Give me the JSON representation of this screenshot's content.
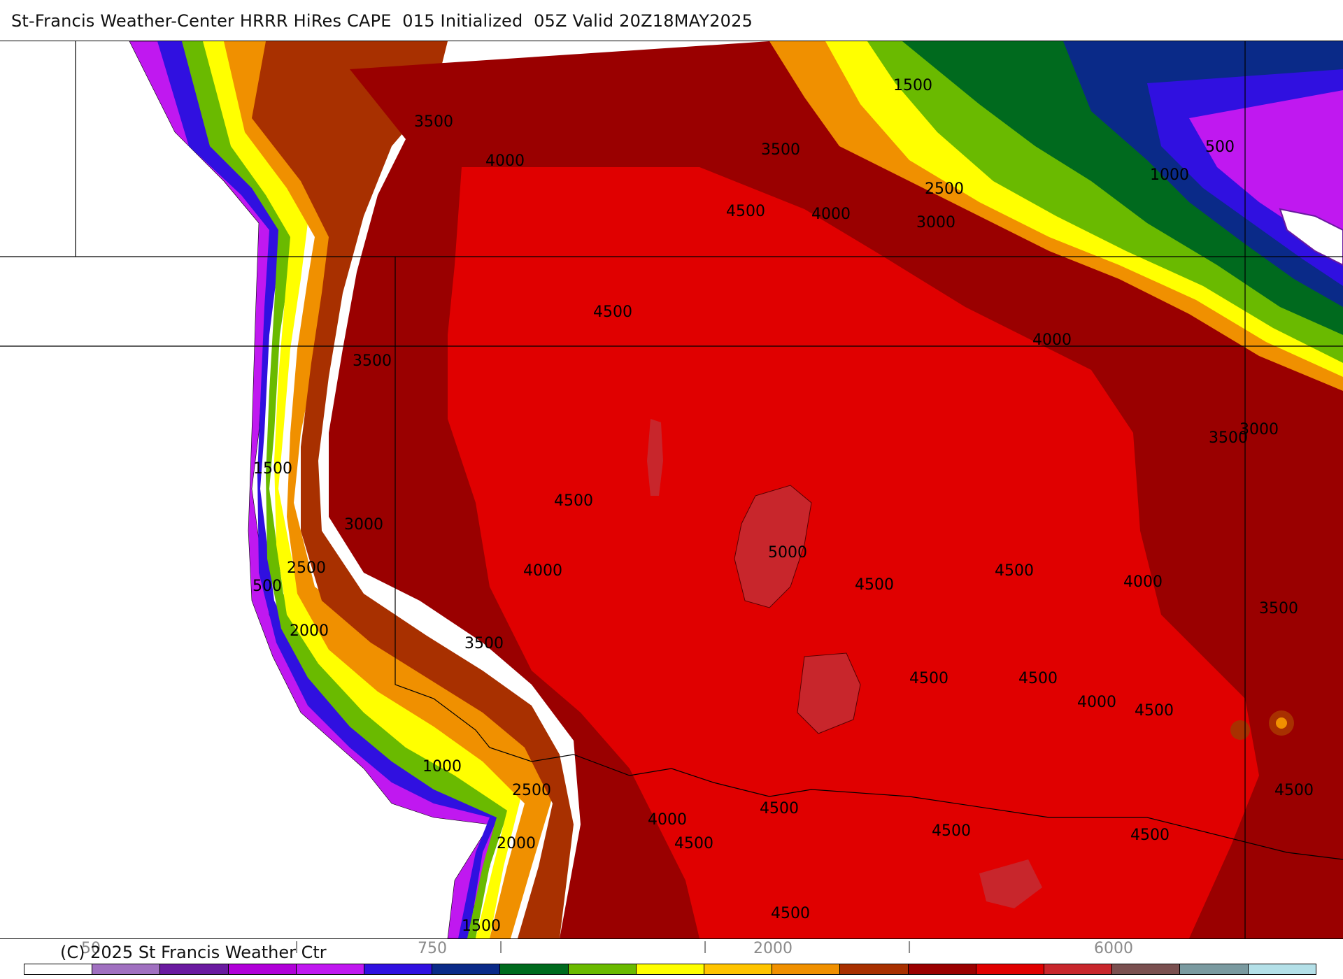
{
  "header": {
    "title": "St-Francis Weather-Center HRRR HiRes CAPE  015 Initialized  05Z Valid 20Z18MAY2025"
  },
  "footer": {
    "copyright": "(C) 2025 St Francis Weather Ctr"
  },
  "colorbar": {
    "tick_labels": [
      "50",
      "l",
      "750",
      "l",
      "l",
      "2000",
      "l",
      "6000"
    ],
    "colors": [
      "#ffffff",
      "#a070c0",
      "#6a1aa0",
      "#b000d8",
      "#c018f0",
      "#3010e0",
      "#0a2a88",
      "#006a1e",
      "#6aba00",
      "#ffff00",
      "#ffc400",
      "#f09000",
      "#a83000",
      "#9a0000",
      "#e00000",
      "#c8262c",
      "#7a5050",
      "#7a9aa0",
      "#b4e0e8"
    ]
  },
  "map": {
    "palette": {
      "ocean": "#ffffff",
      "purple": "#c018f0",
      "blue": "#3010e0",
      "navy": "#0a2a88",
      "green": "#006a1e",
      "lime": "#6aba00",
      "yellow": "#ffff00",
      "gold": "#ffc400",
      "orange": "#f09000",
      "rust": "#a83000",
      "darkred": "#9a0000",
      "red": "#e00000",
      "pinkred": "#c8262c"
    },
    "contour_labels": [
      "3500",
      "4000",
      "3500",
      "4500",
      "4000",
      "1500",
      "2500",
      "3000",
      "500",
      "1000",
      "4500",
      "3500",
      "4000",
      "1500",
      "3000",
      "2500",
      "500",
      "2000",
      "4500",
      "4000",
      "5000",
      "4500",
      "4500",
      "4000",
      "3500",
      "3500",
      "3000",
      "3500",
      "4500",
      "4500",
      "4500",
      "4000",
      "1000",
      "2500",
      "2000",
      "1500",
      "4000",
      "4500",
      "4500",
      "4500",
      "4500",
      "4500",
      "4500"
    ]
  }
}
